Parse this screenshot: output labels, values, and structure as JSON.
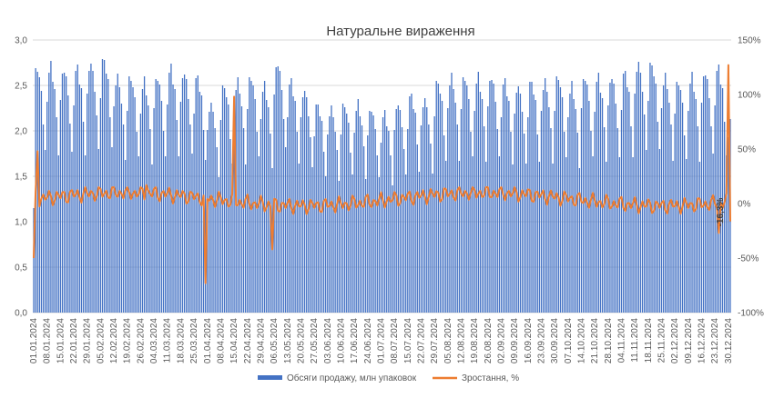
{
  "chart_data": {
    "type": "bar+line",
    "title": "Натуральне вираження",
    "x_tick_labels": [
      "01.01.2024",
      "08.01.2024",
      "15.01.2024",
      "22.01.2024",
      "29.01.2024",
      "05.02.2024",
      "12.02.2024",
      "19.02.2024",
      "26.02.2024",
      "04.03.2024",
      "11.03.2024",
      "18.03.2024",
      "25.03.2024",
      "01.04.2024",
      "08.04.2024",
      "15.04.2024",
      "22.04.2024",
      "29.04.2024",
      "06.05.2024",
      "13.05.2024",
      "20.05.2024",
      "27.05.2024",
      "03.06.2024",
      "10.06.2024",
      "17.06.2024",
      "24.06.2024",
      "01.07.2024",
      "08.07.2024",
      "15.07.2024",
      "22.07.2024",
      "29.07.2024",
      "05.08.2024",
      "12.08.2024",
      "19.08.2024",
      "26.08.2024",
      "02.09.2024",
      "09.09.2024",
      "16.09.2024",
      "23.09.2024",
      "30.09.2024",
      "07.10.2024",
      "14.10.2024",
      "21.10.2024",
      "28.10.2024",
      "04.11.2024",
      "11.11.2024",
      "18.11.2024",
      "25.11.2024",
      "02.12.2024",
      "09.12.2024",
      "16.12.2024",
      "23.12.2024",
      "30.12.2024"
    ],
    "left_axis": {
      "min": 0,
      "max": 3.0,
      "step": 0.5,
      "tick_labels": [
        "0,0",
        "0,5",
        "1,0",
        "1,5",
        "2,0",
        "2,5",
        "3,0"
      ]
    },
    "right_axis": {
      "min": -100,
      "max": 150,
      "step": 50,
      "tick_labels": [
        "-100%",
        "-50%",
        "0%",
        "50%",
        "100%",
        "150%"
      ]
    },
    "grid": true,
    "legend_position": "bottom",
    "series": [
      {
        "name": "Обсяги продажу, млн упаковок",
        "kind": "bar",
        "axis": "left",
        "color": "#4472C4",
        "weekly_peak": [
          2.7,
          2.72,
          2.68,
          2.7,
          2.75,
          2.8,
          2.6,
          2.6,
          2.55,
          2.6,
          2.7,
          2.65,
          2.6,
          2.3,
          2.5,
          2.55,
          2.6,
          2.5,
          2.75,
          2.55,
          2.45,
          2.3,
          2.25,
          2.3,
          2.3,
          2.25,
          2.2,
          2.3,
          2.4,
          2.35,
          2.55,
          2.6,
          2.6,
          2.6,
          2.6,
          2.55,
          2.5,
          2.55,
          2.55,
          2.6,
          2.5,
          2.6,
          2.6,
          2.6,
          2.65,
          2.75,
          2.75,
          2.6,
          2.55,
          2.6,
          2.65,
          2.7,
          2.2
        ],
        "weekday_pattern": [
          0.86,
          0.98,
          1.0,
          0.95,
          0.9,
          0.78,
          0.65
        ]
      },
      {
        "name": "Зростання, %",
        "kind": "line",
        "axis": "right",
        "color": "#ED7D31",
        "annotation": "-16,3%",
        "typical_range": [
          -10,
          15
        ],
        "notable_points": [
          {
            "date": "01.01.2024",
            "value": -50
          },
          {
            "date": "03.01.2024",
            "value": 48
          },
          {
            "date": "29.02.2024",
            "value": 17
          },
          {
            "date": "31.03.2024",
            "value": -73
          },
          {
            "date": "15.04.2024",
            "value": 98
          },
          {
            "date": "05.05.2024",
            "value": -42
          },
          {
            "date": "25.12.2024",
            "value": -27
          },
          {
            "date": "30.12.2024",
            "value": 127
          },
          {
            "date": "31.12.2024",
            "value": -16.3
          }
        ]
      }
    ]
  }
}
